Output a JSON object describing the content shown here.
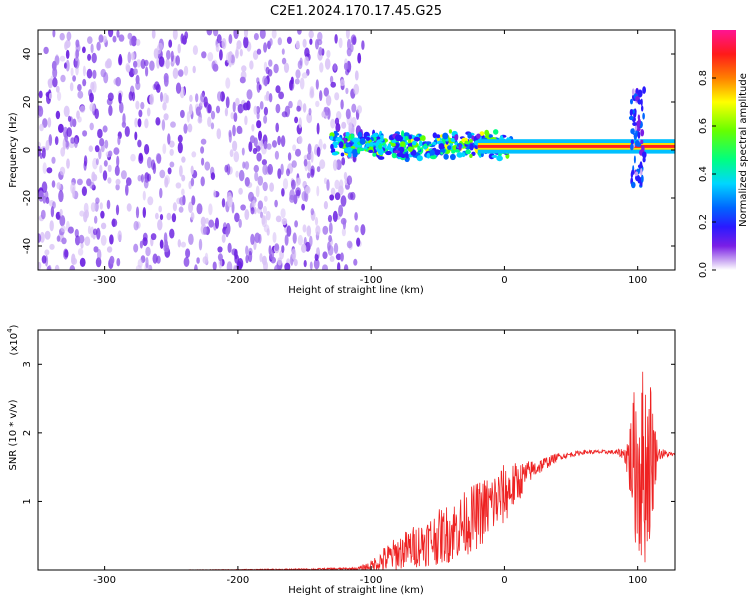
{
  "figure_title": "C2E1.2024.170.17.45.G25",
  "chart_data": [
    {
      "type": "heatmap",
      "xlabel": "Height of straight line (km)",
      "ylabel": "Frequency (Hz)",
      "xlim": [
        -350,
        128
      ],
      "ylim": [
        -50,
        50
      ],
      "x_ticks": [
        -300,
        -200,
        -100,
        0,
        100
      ],
      "y_ticks": [
        -40,
        -20,
        0,
        20,
        40
      ],
      "grid": false,
      "colorbar": {
        "label": "Normalized spectral amplitude",
        "range": [
          0.0,
          1.0
        ],
        "ticks": [
          0.0,
          0.2,
          0.4,
          0.6,
          0.8
        ],
        "colors": [
          "#ffffff",
          "#c9a6f2",
          "#7a1fe6",
          "#2a1aff",
          "#0066ff",
          "#00d6ff",
          "#00ff80",
          "#66ff00",
          "#ffff00",
          "#ff8000",
          "#ff1a1a",
          "#ff1493"
        ]
      },
      "regions": [
        {
          "x_range": [
            -350,
            -106
          ],
          "freq_range": [
            -50,
            50
          ],
          "amplitude_range": [
            0.0,
            0.18
          ]
        },
        {
          "x_range": [
            -130,
            5
          ],
          "freq_center": 2,
          "freq_halfwidth": 6,
          "amplitude_range": [
            0.2,
            0.7
          ]
        },
        {
          "x_range": [
            -20,
            128
          ],
          "freq_center": 1.5,
          "freq_halfwidth": 3,
          "amplitude_range": [
            0.5,
            1.0
          ]
        },
        {
          "x_range": [
            95,
            105
          ],
          "freq_range": [
            -15,
            25
          ],
          "amplitude_range": [
            0.1,
            0.4
          ]
        }
      ]
    },
    {
      "type": "line",
      "xlabel": "Height of straight line (km)",
      "ylabel": "SNR (10 * v/v)",
      "y_multiplier": "(x10",
      "y_multiplier_exp": "4",
      "y_multiplier_close": ")",
      "xlim": [
        -350,
        128
      ],
      "ylim": [
        0,
        3.5
      ],
      "x_ticks": [
        -300,
        -200,
        -100,
        0,
        100
      ],
      "y_ticks": [
        1,
        2,
        3
      ],
      "grid": false,
      "series": [
        {
          "color": "#ee2222",
          "envelope": {
            "x": [
              -350,
              -250,
              -150,
              -110,
              -100,
              -90,
              -80,
              -60,
              -40,
              -20,
              0,
              20,
              40,
              60,
              80,
              90,
              95,
              100,
              105,
              110,
              115,
              128
            ],
            "mean": [
              0.0,
              0.0,
              0.01,
              0.02,
              0.06,
              0.15,
              0.25,
              0.4,
              0.55,
              0.8,
              1.1,
              1.45,
              1.65,
              1.72,
              1.72,
              1.7,
              1.6,
              1.55,
              1.5,
              1.65,
              1.7,
              1.68
            ],
            "spread": [
              0.0,
              0.0,
              0.01,
              0.02,
              0.08,
              0.2,
              0.25,
              0.35,
              0.45,
              0.5,
              0.45,
              0.15,
              0.05,
              0.03,
              0.03,
              0.08,
              0.7,
              1.5,
              1.5,
              1.2,
              0.1,
              0.02
            ]
          }
        }
      ]
    }
  ]
}
